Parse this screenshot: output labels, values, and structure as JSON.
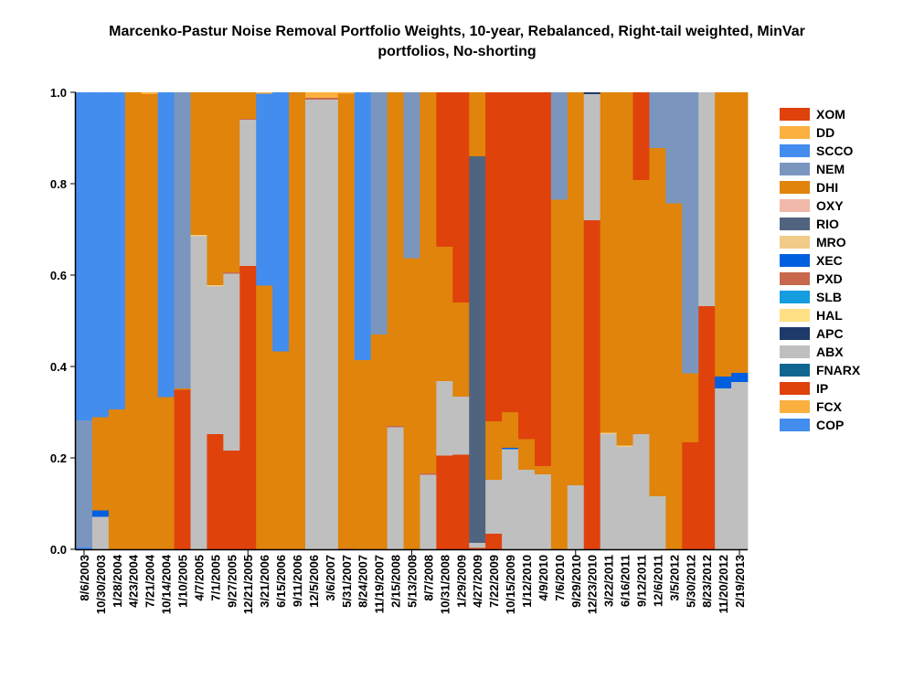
{
  "chart_data": {
    "type": "bar",
    "stacked": true,
    "title": [
      "Marcenko-Pastur Noise Removal Portfolio Weights, 10-year, Rebalanced, Right-tail weighted, MinVar",
      "portfolios, No-shorting"
    ],
    "xlabel": "",
    "ylabel": "",
    "ylim": [
      0,
      1
    ],
    "yticks": [
      "0.0",
      "0.2",
      "0.4",
      "0.6",
      "0.8",
      "1.0"
    ],
    "legend_position": "right",
    "series": [
      {
        "name": "XOM",
        "color": "#E0420C"
      },
      {
        "name": "DD",
        "color": "#FBB040"
      },
      {
        "name": "SCCO",
        "color": "#428DEE"
      },
      {
        "name": "NEM",
        "color": "#7A96BF"
      },
      {
        "name": "DHI",
        "color": "#E0840B"
      },
      {
        "name": "OXY",
        "color": "#F0B8A8"
      },
      {
        "name": "RIO",
        "color": "#506480"
      },
      {
        "name": "MRO",
        "color": "#F0CC88"
      },
      {
        "name": "XEC",
        "color": "#005FDF"
      },
      {
        "name": "PXD",
        "color": "#C8684C"
      },
      {
        "name": "SLB",
        "color": "#159DE0"
      },
      {
        "name": "HAL",
        "color": "#FFE084"
      },
      {
        "name": "APC",
        "color": "#1D3A6A"
      },
      {
        "name": "ABX",
        "color": "#BFBFBF"
      },
      {
        "name": "FNARX",
        "color": "#0F6690"
      },
      {
        "name": "IP",
        "color": "#E0420C"
      },
      {
        "name": "FCX",
        "color": "#FBB040"
      },
      {
        "name": "COP",
        "color": "#428DEE"
      }
    ],
    "bars": [
      {
        "date": "8/6/2003",
        "segments": [
          [
            "COP",
            0.004
          ],
          [
            "NEM",
            0.278
          ],
          [
            "SCCO",
            0.718
          ]
        ]
      },
      {
        "date": "10/30/2003",
        "segments": [
          [
            "ABX",
            0.071
          ],
          [
            "XEC",
            0.014
          ],
          [
            "DHI",
            0.204
          ],
          [
            "SCCO",
            0.711
          ]
        ]
      },
      {
        "date": "1/28/2004",
        "segments": [
          [
            "DHI",
            0.306
          ],
          [
            "SCCO",
            0.694
          ]
        ]
      },
      {
        "date": "4/23/2004",
        "segments": [
          [
            "DHI",
            1.0
          ]
        ]
      },
      {
        "date": "7/21/2004",
        "segments": [
          [
            "DHI",
            0.996
          ],
          [
            "FCX",
            0.004
          ]
        ]
      },
      {
        "date": "10/14/2004",
        "segments": [
          [
            "DHI",
            0.333
          ],
          [
            "SCCO",
            0.667
          ]
        ]
      },
      {
        "date": "1/10/2005",
        "segments": [
          [
            "IP",
            0.349
          ],
          [
            "DHI",
            0.003
          ],
          [
            "NEM",
            0.648
          ]
        ]
      },
      {
        "date": "4/7/2005",
        "segments": [
          [
            "ABX",
            0.685
          ],
          [
            "MRO",
            0.003
          ],
          [
            "DHI",
            0.312
          ]
        ]
      },
      {
        "date": "7/1/2005",
        "segments": [
          [
            "IP",
            0.252
          ],
          [
            "ABX",
            0.323
          ],
          [
            "MRO",
            0.003
          ],
          [
            "DHI",
            0.422
          ]
        ]
      },
      {
        "date": "9/27/2005",
        "segments": [
          [
            "IP",
            0.216
          ],
          [
            "ABX",
            0.387
          ],
          [
            "PXD",
            0.003
          ],
          [
            "DHI",
            0.394
          ]
        ]
      },
      {
        "date": "12/21/2005",
        "segments": [
          [
            "IP",
            0.62
          ],
          [
            "ABX",
            0.32
          ],
          [
            "PXD",
            0.002
          ],
          [
            "DHI",
            0.058
          ]
        ]
      },
      {
        "date": "3/21/2006",
        "segments": [
          [
            "DHI",
            0.577
          ],
          [
            "SCCO",
            0.42
          ],
          [
            "FCX",
            0.003
          ]
        ]
      },
      {
        "date": "6/15/2006",
        "segments": [
          [
            "DHI",
            0.433
          ],
          [
            "SCCO",
            0.567
          ]
        ]
      },
      {
        "date": "9/11/2006",
        "segments": [
          [
            "DHI",
            1.0
          ]
        ]
      },
      {
        "date": "12/5/2006",
        "segments": [
          [
            "ABX",
            0.984
          ],
          [
            "PXD",
            0.004
          ],
          [
            "FCX",
            0.012
          ]
        ]
      },
      {
        "date": "3/6/2007",
        "segments": [
          [
            "ABX",
            0.984
          ],
          [
            "PXD",
            0.004
          ],
          [
            "FCX",
            0.012
          ]
        ]
      },
      {
        "date": "5/31/2007",
        "segments": [
          [
            "PXD",
            0.002
          ],
          [
            "DHI",
            0.995
          ],
          [
            "FCX",
            0.003
          ]
        ]
      },
      {
        "date": "8/24/2007",
        "segments": [
          [
            "DHI",
            0.414
          ],
          [
            "SCCO",
            0.586
          ]
        ]
      },
      {
        "date": "11/19/2007",
        "segments": [
          [
            "DHI",
            0.47
          ],
          [
            "NEM",
            0.53
          ]
        ]
      },
      {
        "date": "2/15/2008",
        "segments": [
          [
            "ABX",
            0.267
          ],
          [
            "PXD",
            0.003
          ],
          [
            "DHI",
            0.73
          ]
        ]
      },
      {
        "date": "5/13/2008",
        "segments": [
          [
            "DHI",
            0.637
          ],
          [
            "NEM",
            0.363
          ]
        ]
      },
      {
        "date": "8/7/2008",
        "segments": [
          [
            "ABX",
            0.163
          ],
          [
            "PXD",
            0.003
          ],
          [
            "DHI",
            0.834
          ]
        ]
      },
      {
        "date": "10/31/2008",
        "segments": [
          [
            "IP",
            0.205
          ],
          [
            "ABX",
            0.163
          ],
          [
            "DHI",
            0.294
          ],
          [
            "XOM",
            0.338
          ]
        ]
      },
      {
        "date": "1/29/2009",
        "segments": [
          [
            "IP",
            0.207
          ],
          [
            "ABX",
            0.127
          ],
          [
            "DHI",
            0.206
          ],
          [
            "XOM",
            0.46
          ]
        ]
      },
      {
        "date": "4/27/2009",
        "segments": [
          [
            "IP",
            0.003
          ],
          [
            "ABX",
            0.011
          ],
          [
            "RIO",
            0.846
          ],
          [
            "DHI",
            0.14
          ]
        ]
      },
      {
        "date": "7/22/2009",
        "segments": [
          [
            "IP",
            0.034
          ],
          [
            "ABX",
            0.118
          ],
          [
            "DHI",
            0.128
          ],
          [
            "XOM",
            0.72
          ]
        ]
      },
      {
        "date": "10/15/2009",
        "segments": [
          [
            "ABX",
            0.219
          ],
          [
            "XEC",
            0.003
          ],
          [
            "DHI",
            0.078
          ],
          [
            "XOM",
            0.7
          ]
        ]
      },
      {
        "date": "1/12/2010",
        "segments": [
          [
            "ABX",
            0.174
          ],
          [
            "DHI",
            0.067
          ],
          [
            "XOM",
            0.759
          ]
        ]
      },
      {
        "date": "4/9/2010",
        "segments": [
          [
            "ABX",
            0.164
          ],
          [
            "DHI",
            0.018
          ],
          [
            "XOM",
            0.818
          ]
        ]
      },
      {
        "date": "7/6/2010",
        "segments": [
          [
            "DHI",
            0.765
          ],
          [
            "NEM",
            0.235
          ]
        ]
      },
      {
        "date": "9/29/2010",
        "segments": [
          [
            "ABX",
            0.14
          ],
          [
            "DHI",
            0.86
          ]
        ]
      },
      {
        "date": "12/23/2010",
        "segments": [
          [
            "IP",
            0.72
          ],
          [
            "ABX",
            0.276
          ],
          [
            "APC",
            0.004
          ]
        ]
      },
      {
        "date": "3/22/2011",
        "segments": [
          [
            "ABX",
            0.252
          ],
          [
            "MRO",
            0.003
          ],
          [
            "DHI",
            0.745
          ]
        ]
      },
      {
        "date": "6/16/2011",
        "segments": [
          [
            "ABX",
            0.224
          ],
          [
            "MRO",
            0.003
          ],
          [
            "DHI",
            0.773
          ]
        ]
      },
      {
        "date": "9/12/2011",
        "segments": [
          [
            "ABX",
            0.252
          ],
          [
            "DHI",
            0.556
          ],
          [
            "XOM",
            0.192
          ]
        ]
      },
      {
        "date": "12/6/2011",
        "segments": [
          [
            "ABX",
            0.116
          ],
          [
            "DHI",
            0.762
          ],
          [
            "NEM",
            0.122
          ]
        ]
      },
      {
        "date": "3/5/2012",
        "segments": [
          [
            "DHI",
            0.757
          ],
          [
            "NEM",
            0.243
          ]
        ]
      },
      {
        "date": "5/30/2012",
        "segments": [
          [
            "IP",
            0.234
          ],
          [
            "DHI",
            0.151
          ],
          [
            "NEM",
            0.615
          ]
        ]
      },
      {
        "date": "8/23/2012",
        "segments": [
          [
            "IP",
            0.532
          ],
          [
            "ABX",
            0.468
          ]
        ]
      },
      {
        "date": "11/20/2012",
        "segments": [
          [
            "ABX",
            0.352
          ],
          [
            "XEC",
            0.026
          ],
          [
            "DHI",
            0.622
          ]
        ]
      },
      {
        "date": "2/19/2013",
        "segments": [
          [
            "ABX",
            0.366
          ],
          [
            "XEC",
            0.02
          ],
          [
            "DHI",
            0.614
          ]
        ]
      }
    ]
  }
}
